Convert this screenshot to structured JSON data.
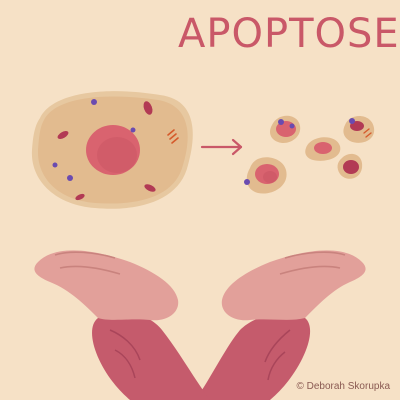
{
  "title": "APOPTOSE",
  "credit": "© Deborah Skorupka",
  "colors": {
    "background": "#f6e1c6",
    "title": "#c95868",
    "cytoplasm": "#e2bb8f",
    "cell_edge": "#e7c8a0",
    "nucleus": "#d9636f",
    "nucleus_dark": "#c2515e",
    "vesicle": "#6a4bb0",
    "organelle": "#b23a54",
    "mito": "#d55a2b",
    "skin": "#e2a09a",
    "skin_shadow": "#c9837e",
    "sleeve": "#c55b6c",
    "sleeve_dark": "#a9455a"
  },
  "icons": [
    "arrow-right-icon"
  ]
}
